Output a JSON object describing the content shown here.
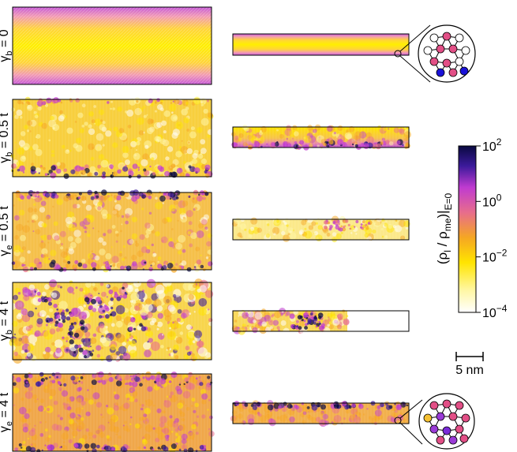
{
  "figure": {
    "row_labels": [
      {
        "sym": "γ",
        "sub": "b",
        "rhs": "= 0",
        "bar": false
      },
      {
        "sym": "γ",
        "sub": "b",
        "rhs": "= 0.5 t",
        "bar": true
      },
      {
        "sym": "γ",
        "sub": "e",
        "rhs": "= 0.5 t",
        "bar": true
      },
      {
        "sym": "γ",
        "sub": "b",
        "rhs": "= 4 t",
        "bar": true
      },
      {
        "sym": "γ",
        "sub": "e",
        "rhs": "= 4 t",
        "bar": true
      }
    ],
    "scale_bar_label": "5 nm",
    "colors": {
      "colormap": [
        "#ffffff",
        "#fff7a6",
        "#ffe400",
        "#f5a623",
        "#e76d8c",
        "#c03bd0",
        "#3b1a9b",
        "#090940"
      ],
      "zoom_top": [
        "#ffffff",
        "#e24f86",
        "#ffffff",
        "#ffffff",
        "#e24f86",
        "#e24f86",
        "#ffffff",
        "#e24f86",
        "#e24f86",
        "#ffffff",
        "#1a12d8",
        "#e24f86",
        "#1a12d8"
      ],
      "zoom_bottom": [
        "#e24f86",
        "#e24f86",
        "#e24f86",
        "#f5c133",
        "#9a3bd6",
        "#e24f86",
        "#e24f86",
        "#9a3bd6",
        "#7a2bd8",
        "#e24f86",
        "#e24f86",
        "#9a3bd6",
        "#e24f86"
      ]
    }
  },
  "chart_data": {
    "type": "heatmap",
    "colorbar": {
      "label": "(ρ_l / ρ_me)|_{E=0}",
      "scale": "log",
      "range": [
        0.0001,
        100
      ],
      "ticks": [
        {
          "base": "10",
          "exp": "2",
          "value": 100
        },
        {
          "base": "10",
          "exp": "0",
          "value": 1
        },
        {
          "base": "10",
          "exp": "−2",
          "value": 0.01
        },
        {
          "base": "10",
          "exp": "−4",
          "value": 0.0001
        }
      ]
    }
  }
}
